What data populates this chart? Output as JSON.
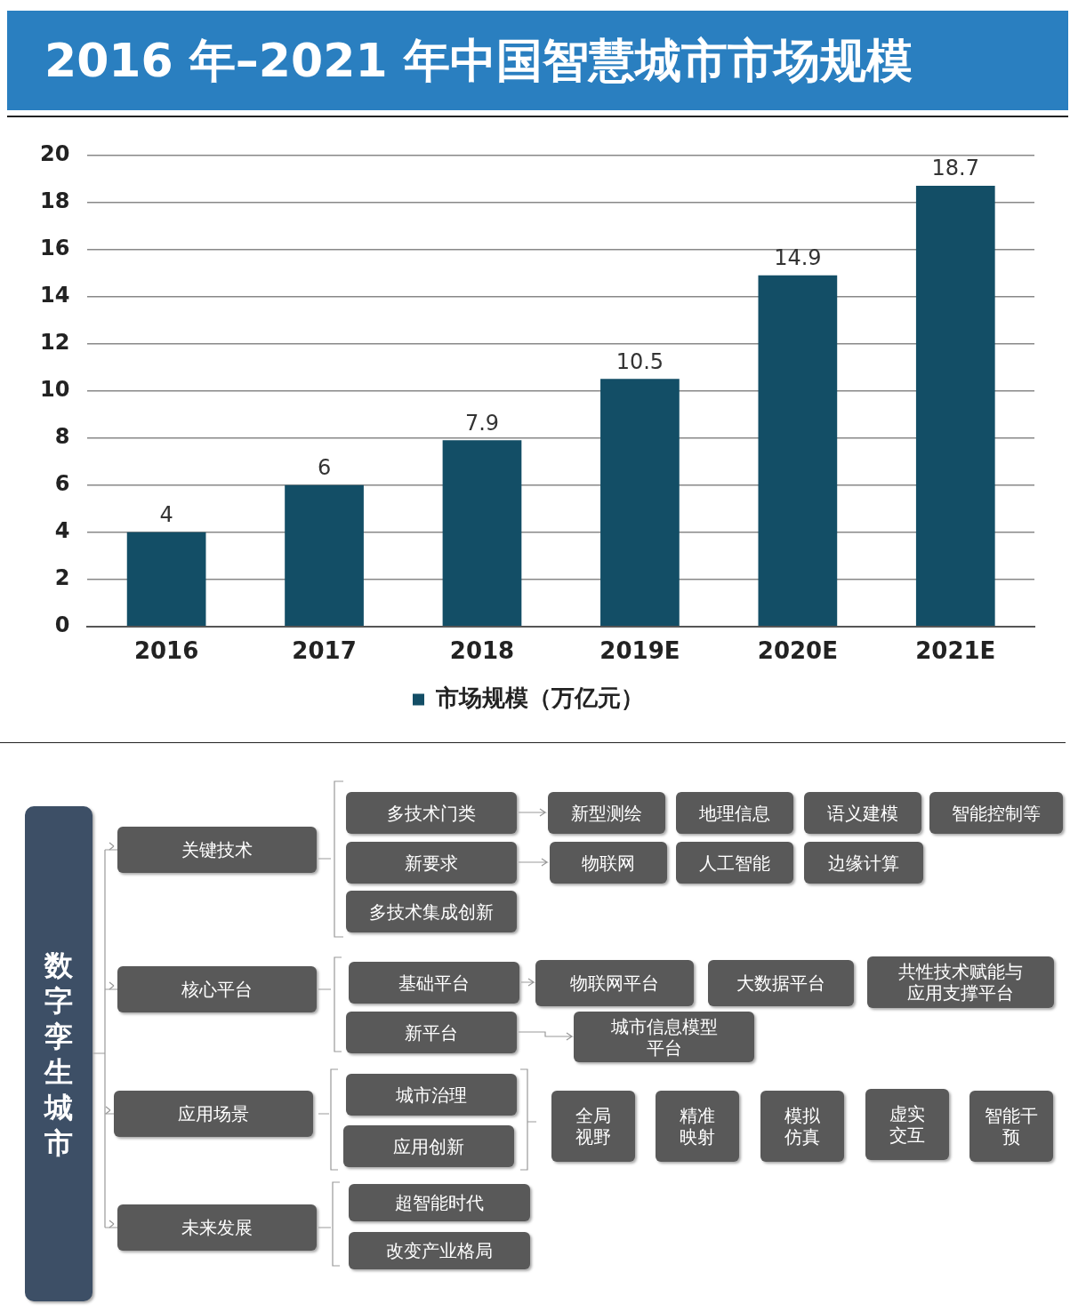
{
  "chart_data": [
    {
      "type": "bar",
      "title": "2016 年–2021 年中国智慧城市市场规模",
      "categories": [
        "2016",
        "2017",
        "2018",
        "2019E",
        "2020E",
        "2021E"
      ],
      "series": [
        {
          "name": "市场规模（万亿元）",
          "color": "#134e66",
          "values": [
            4,
            6,
            7.9,
            10.5,
            14.9,
            18.7
          ]
        }
      ],
      "ylim": [
        0,
        20
      ],
      "yticks": [
        0,
        2,
        4,
        6,
        8,
        10,
        12,
        14,
        16,
        18,
        20
      ],
      "grid": "y",
      "legend": "bottom",
      "data_labels": true
    },
    {
      "type": "other",
      "annotations": [
        "数字孪生城市",
        "关键技术",
        "核心平台",
        "应用场景",
        "未来发展",
        "多技术门类",
        "新型测绘",
        "地理信息",
        "语义建模",
        "智能控制等",
        "新要求",
        "物联网",
        "人工智能",
        "边缘计算",
        "多技术集成创新",
        "基础平台",
        "物联网平台",
        "大数据平台",
        "共性技术赋能与应用支撑平台",
        "新平台",
        "城市信息模型平台",
        "城市治理",
        "应用创新",
        "全局视野",
        "精准映射",
        "模拟仿真",
        "虚实交互",
        "智能干预",
        "超智能时代",
        "改变产业格局"
      ]
    }
  ]
}
